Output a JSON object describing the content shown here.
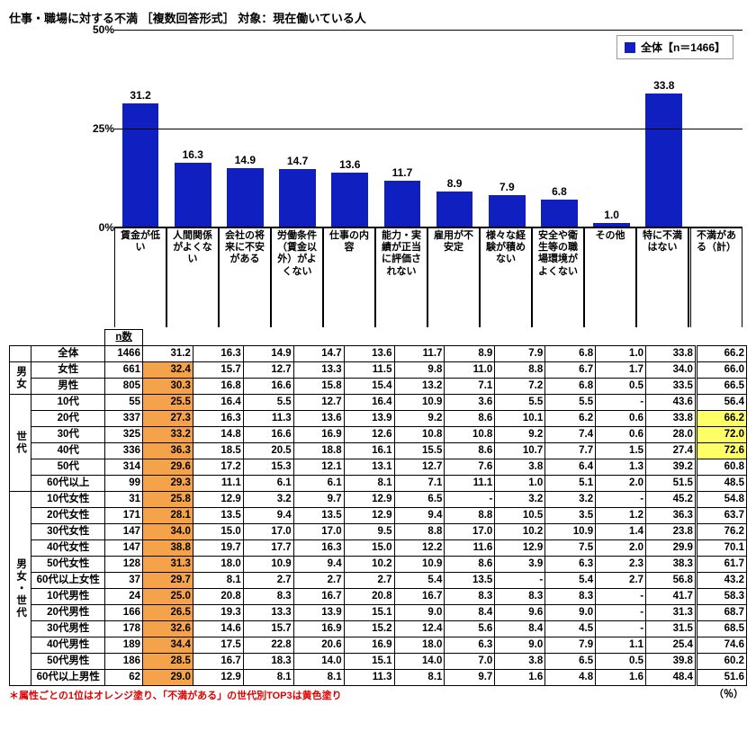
{
  "title": "仕事・職場に対する不満 ［複数回答形式］ 対象：現在働いている人",
  "legend": "全体【n＝1466】",
  "chart": {
    "ymax": 50,
    "yticks": [
      0,
      25,
      50
    ],
    "bar_color": "#1020c0",
    "categories": [
      "賃金が低い",
      "人間関係がよくない",
      "会社の将来に不安がある",
      "労働条件（賃金以外）がよくない",
      "仕事の内容",
      "能力・実績が正当に評価されない",
      "雇用が不安定",
      "様々な経験が積めない",
      "安全や衛生等の職場環境がよくない",
      "その他",
      "特に不満はない",
      "不満がある（計）"
    ],
    "values": [
      31.2,
      16.3,
      14.9,
      14.7,
      13.6,
      11.7,
      8.9,
      7.9,
      6.8,
      1.0,
      33.8,
      null
    ]
  },
  "colors": {
    "orange": "#f5a34a",
    "yellow": "#ffff66"
  },
  "n_header": "n数",
  "groups": [
    {
      "label": "",
      "rows": [
        {
          "name": "全体",
          "n": 1466,
          "v": [
            31.2,
            16.3,
            14.9,
            14.7,
            13.6,
            11.7,
            8.9,
            7.9,
            6.8,
            1.0,
            33.8,
            66.2
          ],
          "hi": []
        }
      ]
    },
    {
      "label": "男女",
      "rows": [
        {
          "name": "女性",
          "n": 661,
          "v": [
            32.4,
            15.7,
            12.7,
            13.3,
            11.5,
            9.8,
            11.0,
            8.8,
            6.7,
            1.7,
            34.0,
            66.0
          ],
          "hi": [
            0
          ]
        },
        {
          "name": "男性",
          "n": 805,
          "v": [
            30.3,
            16.8,
            16.6,
            15.8,
            15.4,
            13.2,
            7.1,
            7.2,
            6.8,
            0.5,
            33.5,
            66.5
          ],
          "hi": [
            0
          ]
        }
      ]
    },
    {
      "label": "世代",
      "rows": [
        {
          "name": "10代",
          "n": 55,
          "v": [
            25.5,
            16.4,
            5.5,
            12.7,
            16.4,
            10.9,
            3.6,
            5.5,
            5.5,
            "-",
            43.6,
            56.4
          ],
          "hi": [
            0
          ]
        },
        {
          "name": "20代",
          "n": 337,
          "v": [
            27.3,
            16.3,
            11.3,
            13.6,
            13.9,
            9.2,
            8.6,
            10.1,
            6.2,
            0.6,
            33.8,
            66.2
          ],
          "hi": [
            0
          ],
          "yl": [
            11
          ]
        },
        {
          "name": "30代",
          "n": 325,
          "v": [
            33.2,
            14.8,
            16.6,
            16.9,
            12.6,
            10.8,
            10.8,
            9.2,
            7.4,
            0.6,
            28.0,
            72.0
          ],
          "hi": [
            0
          ],
          "yl": [
            11
          ]
        },
        {
          "name": "40代",
          "n": 336,
          "v": [
            36.3,
            18.5,
            20.5,
            18.8,
            16.1,
            15.5,
            8.6,
            10.7,
            7.7,
            1.5,
            27.4,
            72.6
          ],
          "hi": [
            0
          ],
          "yl": [
            11
          ]
        },
        {
          "name": "50代",
          "n": 314,
          "v": [
            29.6,
            17.2,
            15.3,
            12.1,
            13.1,
            12.7,
            7.6,
            3.8,
            6.4,
            1.3,
            39.2,
            60.8
          ],
          "hi": [
            0
          ]
        },
        {
          "name": "60代以上",
          "n": 99,
          "v": [
            29.3,
            11.1,
            6.1,
            6.1,
            8.1,
            7.1,
            11.1,
            1.0,
            5.1,
            2.0,
            51.5,
            48.5
          ],
          "hi": [
            0
          ]
        }
      ]
    },
    {
      "label": "男女・世代",
      "rows": [
        {
          "name": "10代女性",
          "n": 31,
          "v": [
            25.8,
            12.9,
            3.2,
            9.7,
            12.9,
            6.5,
            "-",
            3.2,
            3.2,
            "-",
            45.2,
            54.8
          ],
          "hi": [
            0
          ]
        },
        {
          "name": "20代女性",
          "n": 171,
          "v": [
            28.1,
            13.5,
            9.4,
            13.5,
            12.9,
            9.4,
            8.8,
            10.5,
            3.5,
            1.2,
            36.3,
            63.7
          ],
          "hi": [
            0
          ]
        },
        {
          "name": "30代女性",
          "n": 147,
          "v": [
            34.0,
            15.0,
            17.0,
            17.0,
            9.5,
            8.8,
            17.0,
            10.2,
            10.9,
            1.4,
            23.8,
            76.2
          ],
          "hi": [
            0
          ]
        },
        {
          "name": "40代女性",
          "n": 147,
          "v": [
            38.8,
            19.7,
            17.7,
            16.3,
            15.0,
            12.2,
            11.6,
            12.9,
            7.5,
            2.0,
            29.9,
            70.1
          ],
          "hi": [
            0
          ]
        },
        {
          "name": "50代女性",
          "n": 128,
          "v": [
            31.3,
            18.0,
            10.9,
            9.4,
            10.2,
            10.9,
            8.6,
            3.9,
            6.3,
            2.3,
            38.3,
            61.7
          ],
          "hi": [
            0
          ]
        },
        {
          "name": "60代以上女性",
          "n": 37,
          "v": [
            29.7,
            8.1,
            2.7,
            2.7,
            2.7,
            5.4,
            13.5,
            "-",
            5.4,
            2.7,
            56.8,
            43.2
          ],
          "hi": [
            0
          ]
        },
        {
          "name": "10代男性",
          "n": 24,
          "v": [
            25.0,
            20.8,
            8.3,
            16.7,
            20.8,
            16.7,
            8.3,
            8.3,
            8.3,
            "-",
            41.7,
            58.3
          ],
          "hi": [
            0
          ]
        },
        {
          "name": "20代男性",
          "n": 166,
          "v": [
            26.5,
            19.3,
            13.3,
            13.9,
            15.1,
            9.0,
            8.4,
            9.6,
            9.0,
            "-",
            31.3,
            68.7
          ],
          "hi": [
            0
          ]
        },
        {
          "name": "30代男性",
          "n": 178,
          "v": [
            32.6,
            14.6,
            15.7,
            16.9,
            15.2,
            12.4,
            5.6,
            8.4,
            4.5,
            "-",
            31.5,
            68.5
          ],
          "hi": [
            0
          ]
        },
        {
          "name": "40代男性",
          "n": 189,
          "v": [
            34.4,
            17.5,
            22.8,
            20.6,
            16.9,
            18.0,
            6.3,
            9.0,
            7.9,
            1.1,
            25.4,
            74.6
          ],
          "hi": [
            0
          ]
        },
        {
          "name": "50代男性",
          "n": 186,
          "v": [
            28.5,
            16.7,
            18.3,
            14.0,
            15.1,
            14.0,
            7.0,
            3.8,
            6.5,
            0.5,
            39.8,
            60.2
          ],
          "hi": [
            0
          ]
        },
        {
          "name": "60代以上男性",
          "n": 62,
          "v": [
            29.0,
            12.9,
            8.1,
            8.1,
            11.3,
            8.1,
            9.7,
            1.6,
            4.8,
            1.6,
            48.4,
            51.6
          ],
          "hi": [
            0
          ]
        }
      ]
    }
  ],
  "footnote": "＊属性ごとの1位はオレンジ塗り、「不満がある」の世代別TOP3は黄色塗り",
  "pct_label": "（％）"
}
